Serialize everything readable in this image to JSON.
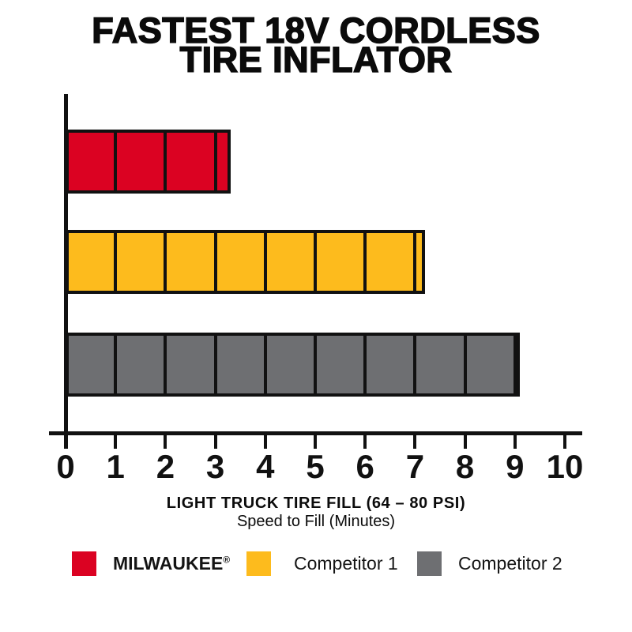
{
  "title": {
    "line1": "FASTEST 18V CORDLESS",
    "line2": "TIRE INFLATOR"
  },
  "chart_data": {
    "type": "bar",
    "orientation": "horizontal",
    "title": "FASTEST 18V CORDLESS TIRE INFLATOR",
    "xlabel": "LIGHT TRUCK TIRE FILL (64 – 80 PSI)",
    "xlabel_sub": "Speed to Fill (Minutes)",
    "xlim": [
      0,
      10
    ],
    "x_ticks": [
      0,
      1,
      2,
      3,
      4,
      5,
      6,
      7,
      8,
      9,
      10
    ],
    "grid": false,
    "unit_segment_lines": true,
    "series": [
      {
        "name": "MILWAUKEE",
        "reg_mark": "®",
        "value": 3.3,
        "color": "#DB0222"
      },
      {
        "name": "Competitor 1",
        "reg_mark": "",
        "value": 7.2,
        "color": "#FDBB1D"
      },
      {
        "name": "Competitor 2",
        "reg_mark": "",
        "value": 9.1,
        "color": "#6E6F72"
      }
    ]
  },
  "legend": {
    "position": "bottom",
    "items": [
      {
        "label": "MILWAUKEE",
        "suffix": "®",
        "color": "#DB0222",
        "bold": true
      },
      {
        "label": "Competitor 1",
        "suffix": "",
        "color": "#FDBB1D",
        "bold": false
      },
      {
        "label": "Competitor 2",
        "suffix": "",
        "color": "#6E6F72",
        "bold": false
      }
    ]
  },
  "colors": {
    "axis": "#111111",
    "background": "#FFFFFF",
    "text": "#0B0B0B"
  }
}
